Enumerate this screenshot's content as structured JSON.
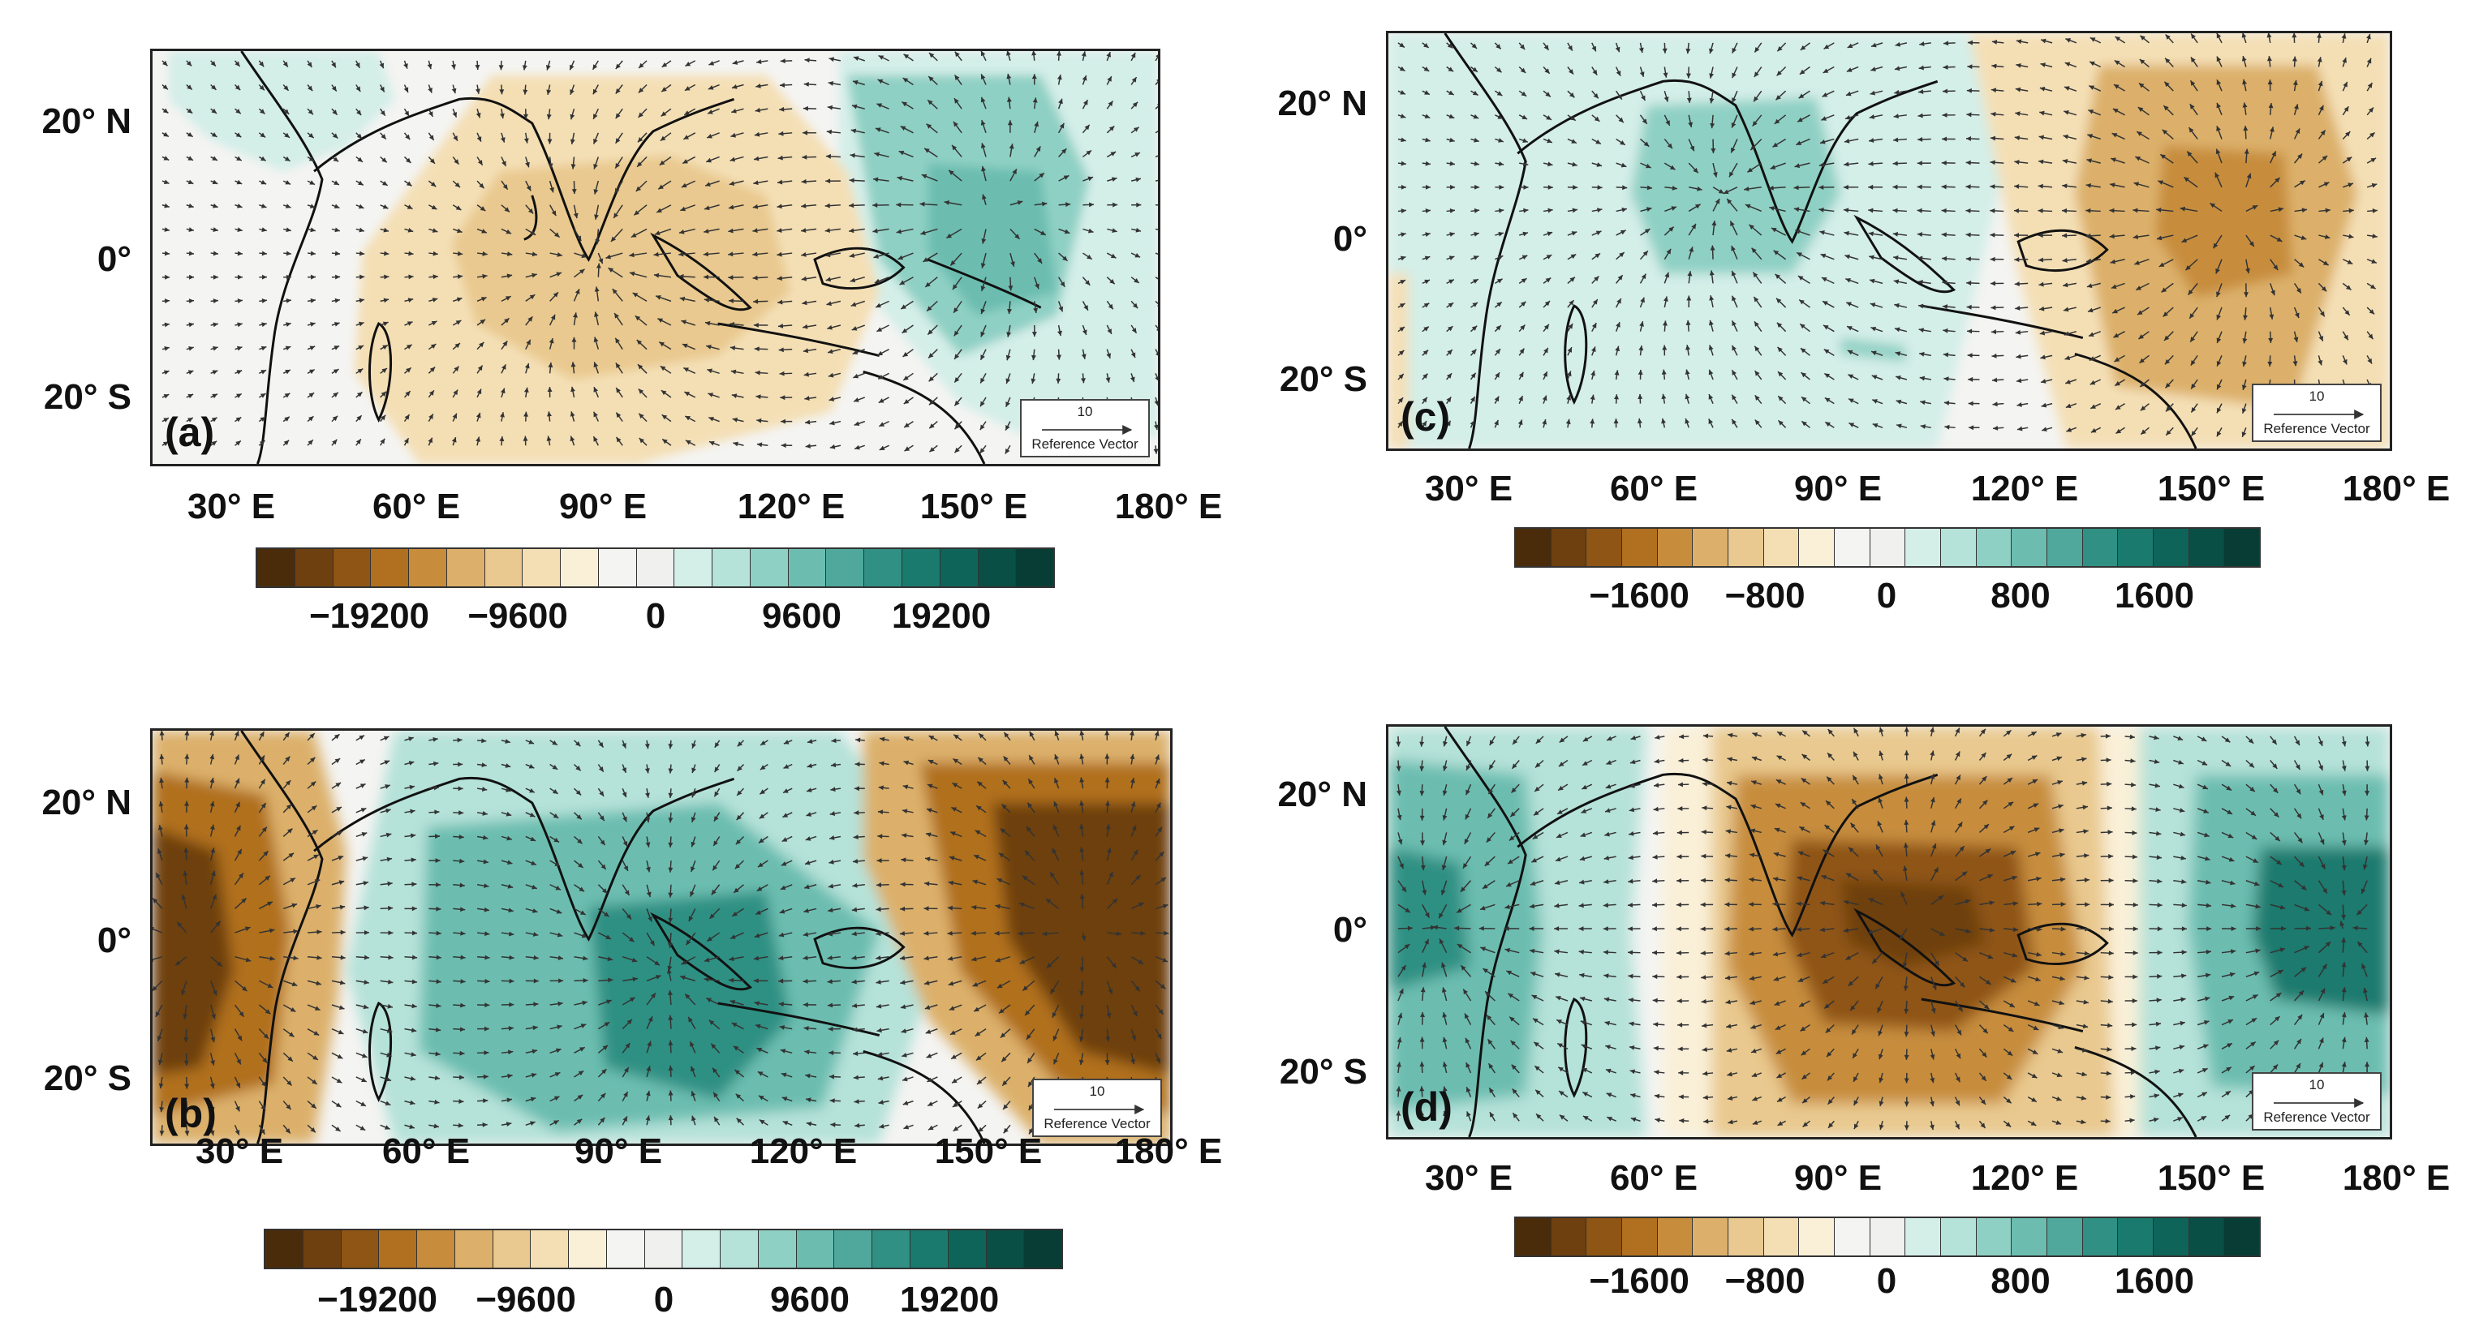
{
  "colors": [
    "#4a2c0b",
    "#6e400f",
    "#8f5514",
    "#b0701f",
    "#c78d3c",
    "#dcb06b",
    "#e9c98f",
    "#f4dfb5",
    "#faf0d8",
    "#f4f4f2",
    "#f0f0ee",
    "#d4eee8",
    "#b5e2d9",
    "#8fd0c4",
    "#6cbdb0",
    "#4fa89b",
    "#2f9083",
    "#1b7a6e",
    "#0f6459",
    "#0a4f45",
    "#073d35"
  ],
  "panels": [
    {
      "label": "(a)",
      "lat_labels": [
        "20° N",
        "0°",
        "20° S"
      ],
      "lon_labels": [
        "30° E",
        "60° E",
        "90° E",
        "120° E",
        "150° E",
        "180° E"
      ],
      "ref_value": "10",
      "ref_text": "Reference Vector",
      "cbar_labels": [
        "−19200",
        "−9600",
        "0",
        "9600",
        "19200"
      ]
    },
    {
      "label": "(b)",
      "lat_labels": [
        "20° N",
        "0°",
        "20° S"
      ],
      "lon_labels": [
        "30° E",
        "60° E",
        "90° E",
        "120° E",
        "150° E",
        "180° E"
      ],
      "ref_value": "10",
      "ref_text": "Reference Vector",
      "cbar_labels": [
        "−19200",
        "−9600",
        "0",
        "9600",
        "19200"
      ]
    },
    {
      "label": "(c)",
      "lat_labels": [
        "20° N",
        "0°",
        "20° S"
      ],
      "lon_labels": [
        "30° E",
        "60° E",
        "90° E",
        "120° E",
        "150° E",
        "180° E"
      ],
      "ref_value": "10",
      "ref_text": "Reference Vector",
      "cbar_labels": [
        "−1600",
        "−800",
        "0",
        "800",
        "1600"
      ]
    },
    {
      "label": "(d)",
      "lat_labels": [
        "20° N",
        "0°",
        "20° S"
      ],
      "lon_labels": [
        "30° E",
        "60° E",
        "90° E",
        "120° E",
        "150° E",
        "180° E"
      ],
      "ref_value": "10",
      "ref_text": "Reference Vector",
      "cbar_labels": [
        "−1600",
        "−800",
        "0",
        "800",
        "1600"
      ]
    }
  ]
}
